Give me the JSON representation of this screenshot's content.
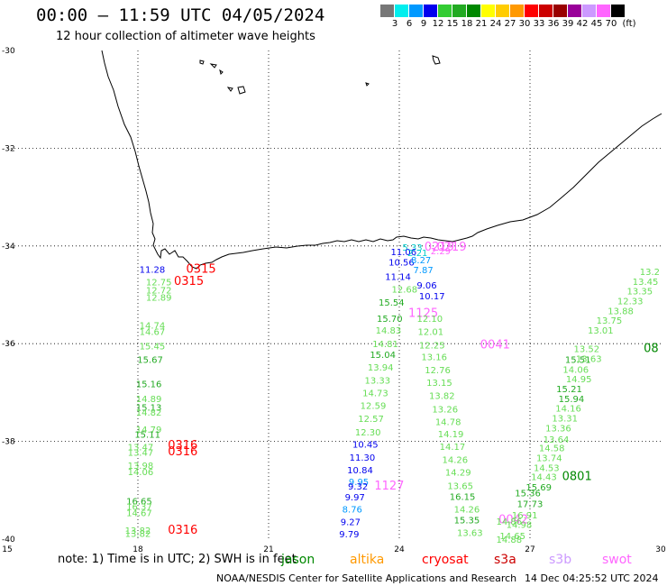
{
  "header": {
    "title": "00:00  –  11:59 UTC 04/05/2024",
    "subtitle": "12 hour collection of altimeter wave heights"
  },
  "colorbar": {
    "colors": [
      "#777777",
      "#00eeee",
      "#0099ff",
      "#0000ee",
      "#33cc33",
      "#22aa22",
      "#008800",
      "#ffff00",
      "#ffcc00",
      "#ff9900",
      "#ff0000",
      "#cc0000",
      "#990000",
      "#990099",
      "#cc99ff",
      "#ff66ff",
      "#000000"
    ],
    "labels": [
      "3",
      "6",
      "9",
      "12",
      "15",
      "18",
      "21",
      "24",
      "27",
      "30",
      "33",
      "36",
      "39",
      "42",
      "45",
      "70",
      "(ft)"
    ]
  },
  "axes": {
    "x_ticks": [
      "15",
      "18",
      "21",
      "24",
      "27",
      "30"
    ],
    "y_ticks": [
      "-30",
      "-32",
      "-34",
      "-36",
      "-38",
      "-40"
    ]
  },
  "satellite_colors": {
    "jason": "#008800",
    "altika": "#ff9900",
    "cryosat": "#ff0000",
    "s3a": "#cc0000",
    "s3b": "#cc99ff",
    "swot": "#ff66ff",
    "g_light": "#66dd55",
    "g_mid": "#22aa22",
    "blue": "#0000ee",
    "lblue": "#0099ff",
    "cyan": "#00cccc"
  },
  "observations": [
    {
      "t": "11.28",
      "lon": 18.33,
      "lat": -34.47,
      "c": "blue"
    },
    {
      "t": "0315",
      "lon": 19.45,
      "lat": -34.47,
      "c": "cryosat"
    },
    {
      "t": "0315",
      "lon": 19.17,
      "lat": -34.72,
      "c": "cryosat"
    },
    {
      "t": "12.75",
      "lon": 18.48,
      "lat": -34.73,
      "c": "g_light"
    },
    {
      "t": "12.72",
      "lon": 18.48,
      "lat": -34.9,
      "c": "g_light"
    },
    {
      "t": "12.89",
      "lon": 18.48,
      "lat": -35.05,
      "c": "g_light"
    },
    {
      "t": "14.74",
      "lon": 18.33,
      "lat": -35.62,
      "c": "g_light"
    },
    {
      "t": "14.67",
      "lon": 18.33,
      "lat": -35.75,
      "c": "g_light"
    },
    {
      "t": "15.45",
      "lon": 18.33,
      "lat": -36.04,
      "c": "g_light"
    },
    {
      "t": "15.67",
      "lon": 18.28,
      "lat": -36.32,
      "c": "g_mid"
    },
    {
      "t": "15.16",
      "lon": 18.25,
      "lat": -36.82,
      "c": "g_mid"
    },
    {
      "t": "14.89",
      "lon": 18.25,
      "lat": -37.12,
      "c": "g_light"
    },
    {
      "t": "15.13",
      "lon": 18.25,
      "lat": -37.3,
      "c": "g_mid"
    },
    {
      "t": "14.82",
      "lon": 18.25,
      "lat": -37.4,
      "c": "g_light"
    },
    {
      "t": "14.79",
      "lon": 18.25,
      "lat": -37.75,
      "c": "g_light"
    },
    {
      "t": "15.11",
      "lon": 18.22,
      "lat": -37.85,
      "c": "g_mid"
    },
    {
      "t": "0316",
      "lon": 19.03,
      "lat": -38.08,
      "c": "cryosat"
    },
    {
      "t": "0316",
      "lon": 19.03,
      "lat": -38.21,
      "c": "cryosat"
    },
    {
      "t": "13.47",
      "lon": 18.06,
      "lat": -38.11,
      "c": "g_light"
    },
    {
      "t": "13.47",
      "lon": 18.06,
      "lat": -38.22,
      "c": "g_light"
    },
    {
      "t": "13.98",
      "lon": 18.06,
      "lat": -38.49,
      "c": "g_light"
    },
    {
      "t": "14.06",
      "lon": 18.06,
      "lat": -38.62,
      "c": "g_light"
    },
    {
      "t": "16.65",
      "lon": 18.03,
      "lat": -39.22,
      "c": "g_mid"
    },
    {
      "t": "16.37",
      "lon": 18.03,
      "lat": -39.33,
      "c": "g_light"
    },
    {
      "t": "14.67",
      "lon": 18.03,
      "lat": -39.46,
      "c": "g_light"
    },
    {
      "t": "13.82",
      "lon": 18.0,
      "lat": -39.82,
      "c": "g_light"
    },
    {
      "t": "13.82",
      "lon": 18.0,
      "lat": -39.88,
      "c": "g_light"
    },
    {
      "t": "0316",
      "lon": 19.03,
      "lat": -39.82,
      "c": "cryosat"
    },
    {
      "t": "5.33",
      "lon": 24.3,
      "lat": -34.02,
      "c": "cyan"
    },
    {
      "t": "0219",
      "lon": 25.2,
      "lat": -34.02,
      "c": "swot"
    },
    {
      "t": "0219",
      "lon": 24.92,
      "lat": -34.02,
      "c": "swot"
    },
    {
      "t": "11.06",
      "lon": 24.1,
      "lat": -34.11,
      "c": "blue"
    },
    {
      "t": "2.21",
      "lon": 24.42,
      "lat": -34.13,
      "c": "cyan"
    },
    {
      "t": "2.29",
      "lon": 24.95,
      "lat": -34.1,
      "c": "swot"
    },
    {
      "t": "10.56",
      "lon": 24.05,
      "lat": -34.33,
      "c": "blue"
    },
    {
      "t": "8.27",
      "lon": 24.5,
      "lat": -34.28,
      "c": "lblue"
    },
    {
      "t": "7.87",
      "lon": 24.55,
      "lat": -34.48,
      "c": "lblue"
    },
    {
      "t": "11.14",
      "lon": 23.97,
      "lat": -34.62,
      "c": "blue"
    },
    {
      "t": "9.06",
      "lon": 24.63,
      "lat": -34.8,
      "c": "blue"
    },
    {
      "t": "12.68",
      "lon": 24.12,
      "lat": -34.88,
      "c": "g_light"
    },
    {
      "t": "10.17",
      "lon": 24.75,
      "lat": -35.02,
      "c": "blue"
    },
    {
      "t": "15.54",
      "lon": 23.82,
      "lat": -35.15,
      "c": "g_mid"
    },
    {
      "t": "1125",
      "lon": 24.55,
      "lat": -35.38,
      "c": "swot"
    },
    {
      "t": "12.10",
      "lon": 24.7,
      "lat": -35.48,
      "c": "g_light"
    },
    {
      "t": "15.70",
      "lon": 23.78,
      "lat": -35.48,
      "c": "g_mid"
    },
    {
      "t": "14.83",
      "lon": 23.75,
      "lat": -35.72,
      "c": "g_light"
    },
    {
      "t": "12.01",
      "lon": 24.72,
      "lat": -35.75,
      "c": "g_light"
    },
    {
      "t": "14.81",
      "lon": 23.68,
      "lat": -36.0,
      "c": "g_light"
    },
    {
      "t": "12.25",
      "lon": 24.75,
      "lat": -36.02,
      "c": "g_light"
    },
    {
      "t": "0041",
      "lon": 26.2,
      "lat": -36.02,
      "c": "swot"
    },
    {
      "t": "15.04",
      "lon": 23.62,
      "lat": -36.22,
      "c": "g_mid"
    },
    {
      "t": "13.16",
      "lon": 24.8,
      "lat": -36.26,
      "c": "g_light"
    },
    {
      "t": "13.94",
      "lon": 23.57,
      "lat": -36.48,
      "c": "g_light"
    },
    {
      "t": "12.76",
      "lon": 24.88,
      "lat": -36.53,
      "c": "g_light"
    },
    {
      "t": "13.33",
      "lon": 23.5,
      "lat": -36.74,
      "c": "g_light"
    },
    {
      "t": "13.15",
      "lon": 24.92,
      "lat": -36.79,
      "c": "g_light"
    },
    {
      "t": "14.73",
      "lon": 23.45,
      "lat": -37.0,
      "c": "g_light"
    },
    {
      "t": "13.82",
      "lon": 24.98,
      "lat": -37.06,
      "c": "g_light"
    },
    {
      "t": "12.59",
      "lon": 23.4,
      "lat": -37.26,
      "c": "g_light"
    },
    {
      "t": "13.26",
      "lon": 25.05,
      "lat": -37.33,
      "c": "g_light"
    },
    {
      "t": "12.57",
      "lon": 23.35,
      "lat": -37.53,
      "c": "g_light"
    },
    {
      "t": "14.78",
      "lon": 25.12,
      "lat": -37.59,
      "c": "g_light"
    },
    {
      "t": "12.30",
      "lon": 23.28,
      "lat": -37.8,
      "c": "g_light"
    },
    {
      "t": "14.19",
      "lon": 25.18,
      "lat": -37.84,
      "c": "g_light"
    },
    {
      "t": "10.45",
      "lon": 23.22,
      "lat": -38.05,
      "c": "blue"
    },
    {
      "t": "14.17",
      "lon": 25.22,
      "lat": -38.1,
      "c": "g_light"
    },
    {
      "t": "11.30",
      "lon": 23.15,
      "lat": -38.32,
      "c": "blue"
    },
    {
      "t": "14.26",
      "lon": 25.28,
      "lat": -38.37,
      "c": "g_light"
    },
    {
      "t": "10.84",
      "lon": 23.1,
      "lat": -38.58,
      "c": "blue"
    },
    {
      "t": "14.29",
      "lon": 25.35,
      "lat": -38.63,
      "c": "g_light"
    },
    {
      "t": "9.95",
      "lon": 23.07,
      "lat": -38.82,
      "c": "lblue"
    },
    {
      "t": "9.32",
      "lon": 23.05,
      "lat": -38.91,
      "c": "blue"
    },
    {
      "t": "1127",
      "lon": 23.77,
      "lat": -38.91,
      "c": "swot"
    },
    {
      "t": "13.65",
      "lon": 25.4,
      "lat": -38.9,
      "c": "g_light"
    },
    {
      "t": "9.97",
      "lon": 22.98,
      "lat": -39.13,
      "c": "blue"
    },
    {
      "t": "16.15",
      "lon": 25.45,
      "lat": -39.12,
      "c": "g_mid"
    },
    {
      "t": "8.76",
      "lon": 22.92,
      "lat": -39.38,
      "c": "lblue"
    },
    {
      "t": "14.26",
      "lon": 25.55,
      "lat": -39.38,
      "c": "g_light"
    },
    {
      "t": "9.27",
      "lon": 22.88,
      "lat": -39.64,
      "c": "blue"
    },
    {
      "t": "15.35",
      "lon": 25.55,
      "lat": -39.6,
      "c": "g_mid"
    },
    {
      "t": "0042",
      "lon": 26.62,
      "lat": -39.6,
      "c": "swot"
    },
    {
      "t": "9.79",
      "lon": 22.85,
      "lat": -39.89,
      "c": "blue"
    },
    {
      "t": "13.63",
      "lon": 25.62,
      "lat": -39.86,
      "c": "g_light"
    },
    {
      "t": "14.86",
      "lon": 26.52,
      "lat": -39.63,
      "c": "g_light"
    },
    {
      "t": "16.91",
      "lon": 26.88,
      "lat": -39.5,
      "c": "g_light"
    },
    {
      "t": "14.98",
      "lon": 26.75,
      "lat": -39.7,
      "c": "g_light"
    },
    {
      "t": "14.65",
      "lon": 26.6,
      "lat": -39.93,
      "c": "g_light"
    },
    {
      "t": "14.88",
      "lon": 26.52,
      "lat": -40.0,
      "c": "g_light"
    },
    {
      "t": "17.73",
      "lon": 27.0,
      "lat": -39.27,
      "c": "g_mid"
    },
    {
      "t": "15.36",
      "lon": 26.95,
      "lat": -39.05,
      "c": "g_mid"
    },
    {
      "t": "15.69",
      "lon": 27.2,
      "lat": -38.93,
      "c": "g_mid"
    },
    {
      "t": "14.43",
      "lon": 27.32,
      "lat": -38.72,
      "c": "g_light"
    },
    {
      "t": "0801",
      "lon": 28.08,
      "lat": -38.72,
      "c": "jason"
    },
    {
      "t": "14.53",
      "lon": 27.38,
      "lat": -38.53,
      "c": "g_light"
    },
    {
      "t": "13.74",
      "lon": 27.44,
      "lat": -38.33,
      "c": "g_light"
    },
    {
      "t": "14.58",
      "lon": 27.5,
      "lat": -38.13,
      "c": "g_light"
    },
    {
      "t": "13.64",
      "lon": 27.6,
      "lat": -37.95,
      "c": "g_light"
    },
    {
      "t": "13.36",
      "lon": 27.65,
      "lat": -37.72,
      "c": "g_light"
    },
    {
      "t": "13.31",
      "lon": 27.8,
      "lat": -37.52,
      "c": "g_light"
    },
    {
      "t": "14.16",
      "lon": 27.88,
      "lat": -37.32,
      "c": "g_light"
    },
    {
      "t": "15.94",
      "lon": 27.95,
      "lat": -37.12,
      "c": "g_mid"
    },
    {
      "t": "15.21",
      "lon": 27.9,
      "lat": -36.92,
      "c": "g_mid"
    },
    {
      "t": "14.95",
      "lon": 28.12,
      "lat": -36.72,
      "c": "g_light"
    },
    {
      "t": "14.06",
      "lon": 28.05,
      "lat": -36.52,
      "c": "g_light"
    },
    {
      "t": "15.51",
      "lon": 28.1,
      "lat": -36.32,
      "c": "g_mid"
    },
    {
      "t": "13.63",
      "lon": 28.35,
      "lat": -36.3,
      "c": "g_light"
    },
    {
      "t": "13.52",
      "lon": 28.3,
      "lat": -36.1,
      "c": "g_light"
    },
    {
      "t": "08",
      "lon": 29.78,
      "lat": -36.1,
      "c": "jason"
    },
    {
      "t": "13.01",
      "lon": 28.62,
      "lat": -35.72,
      "c": "g_light"
    },
    {
      "t": "13.75",
      "lon": 28.82,
      "lat": -35.52,
      "c": "g_light"
    },
    {
      "t": "13.88",
      "lon": 29.08,
      "lat": -35.32,
      "c": "g_light"
    },
    {
      "t": "12.33",
      "lon": 29.3,
      "lat": -35.12,
      "c": "g_light"
    },
    {
      "t": "13.35",
      "lon": 29.52,
      "lat": -34.92,
      "c": "g_light"
    },
    {
      "t": "13.45",
      "lon": 29.65,
      "lat": -34.72,
      "c": "g_light"
    },
    {
      "t": "13.2",
      "lon": 29.75,
      "lat": -34.52,
      "c": "g_light"
    }
  ],
  "note": {
    "text": "note:  1) Time is in UTC; 2) SWH is in feet"
  },
  "legend": [
    {
      "label": "jason",
      "color": "#008800"
    },
    {
      "label": "altika",
      "color": "#ff9900"
    },
    {
      "label": "cryosat",
      "color": "#ff0000"
    },
    {
      "label": "s3a",
      "color": "#cc0000"
    },
    {
      "label": "s3b",
      "color": "#cc99ff"
    },
    {
      "label": "swot",
      "color": "#ff66ff"
    }
  ],
  "footer": {
    "agency": "NOAA/NESDIS Center for Satellite Applications and Research",
    "timestamp": "14 Dec 04:25:52 UTC 2024"
  }
}
